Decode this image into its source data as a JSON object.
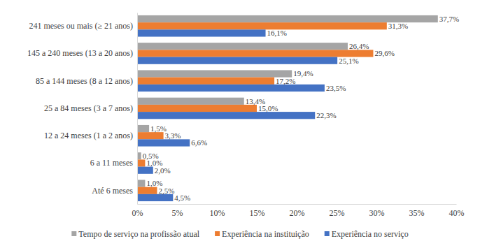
{
  "chart_data": {
    "type": "bar",
    "orientation": "horizontal",
    "categories": [
      "241 meses ou mais (≥ 21 anos)",
      "145 a 240 meses (13 a 20 anos)",
      "85 a 144 meses (8 a 12 anos)",
      "25 a 84 meses (3 a 7 anos)",
      "12 a 24 meses (1 a 2 anos)",
      "6 a 11 meses",
      "Até 6 meses"
    ],
    "series": [
      {
        "name": "Tempo de serviço na profissão atual",
        "color": "#a5a5a5",
        "values": [
          37.7,
          26.4,
          19.4,
          13.4,
          1.5,
          0.5,
          1.0
        ],
        "value_labels": [
          "37,7%",
          "26,4%",
          "19,4%",
          "13,4%",
          "1,5%",
          "0,5%",
          "1,0%"
        ]
      },
      {
        "name": "Experiência na instituição",
        "color": "#ed7d31",
        "values": [
          31.3,
          29.6,
          17.2,
          15.0,
          3.3,
          1.0,
          2.5
        ],
        "value_labels": [
          "31,3%",
          "29,6%",
          "17,2%",
          "15,0%",
          "3,3%",
          "1,0%",
          "2,5%"
        ]
      },
      {
        "name": "Experiência no serviço",
        "color": "#4472c4",
        "values": [
          16.1,
          25.1,
          23.5,
          22.3,
          6.6,
          2.0,
          4.5
        ],
        "value_labels": [
          "16,1%",
          "25,1%",
          "23,5%",
          "22,3%",
          "6,6%",
          "2,0%",
          "4,5%"
        ]
      }
    ],
    "xlim": [
      0,
      40
    ],
    "xticks": [
      {
        "value": 0,
        "label": "0%"
      },
      {
        "value": 5,
        "label": "5%"
      },
      {
        "value": 10,
        "label": "10%"
      },
      {
        "value": 15,
        "label": "15%"
      },
      {
        "value": 20,
        "label": "20%"
      },
      {
        "value": 25,
        "label": "25%"
      },
      {
        "value": 30,
        "label": "30%"
      },
      {
        "value": 35,
        "label": "35%"
      },
      {
        "value": 40,
        "label": "40%"
      }
    ],
    "grid": false,
    "data_labels": true,
    "legend": "bottom"
  }
}
